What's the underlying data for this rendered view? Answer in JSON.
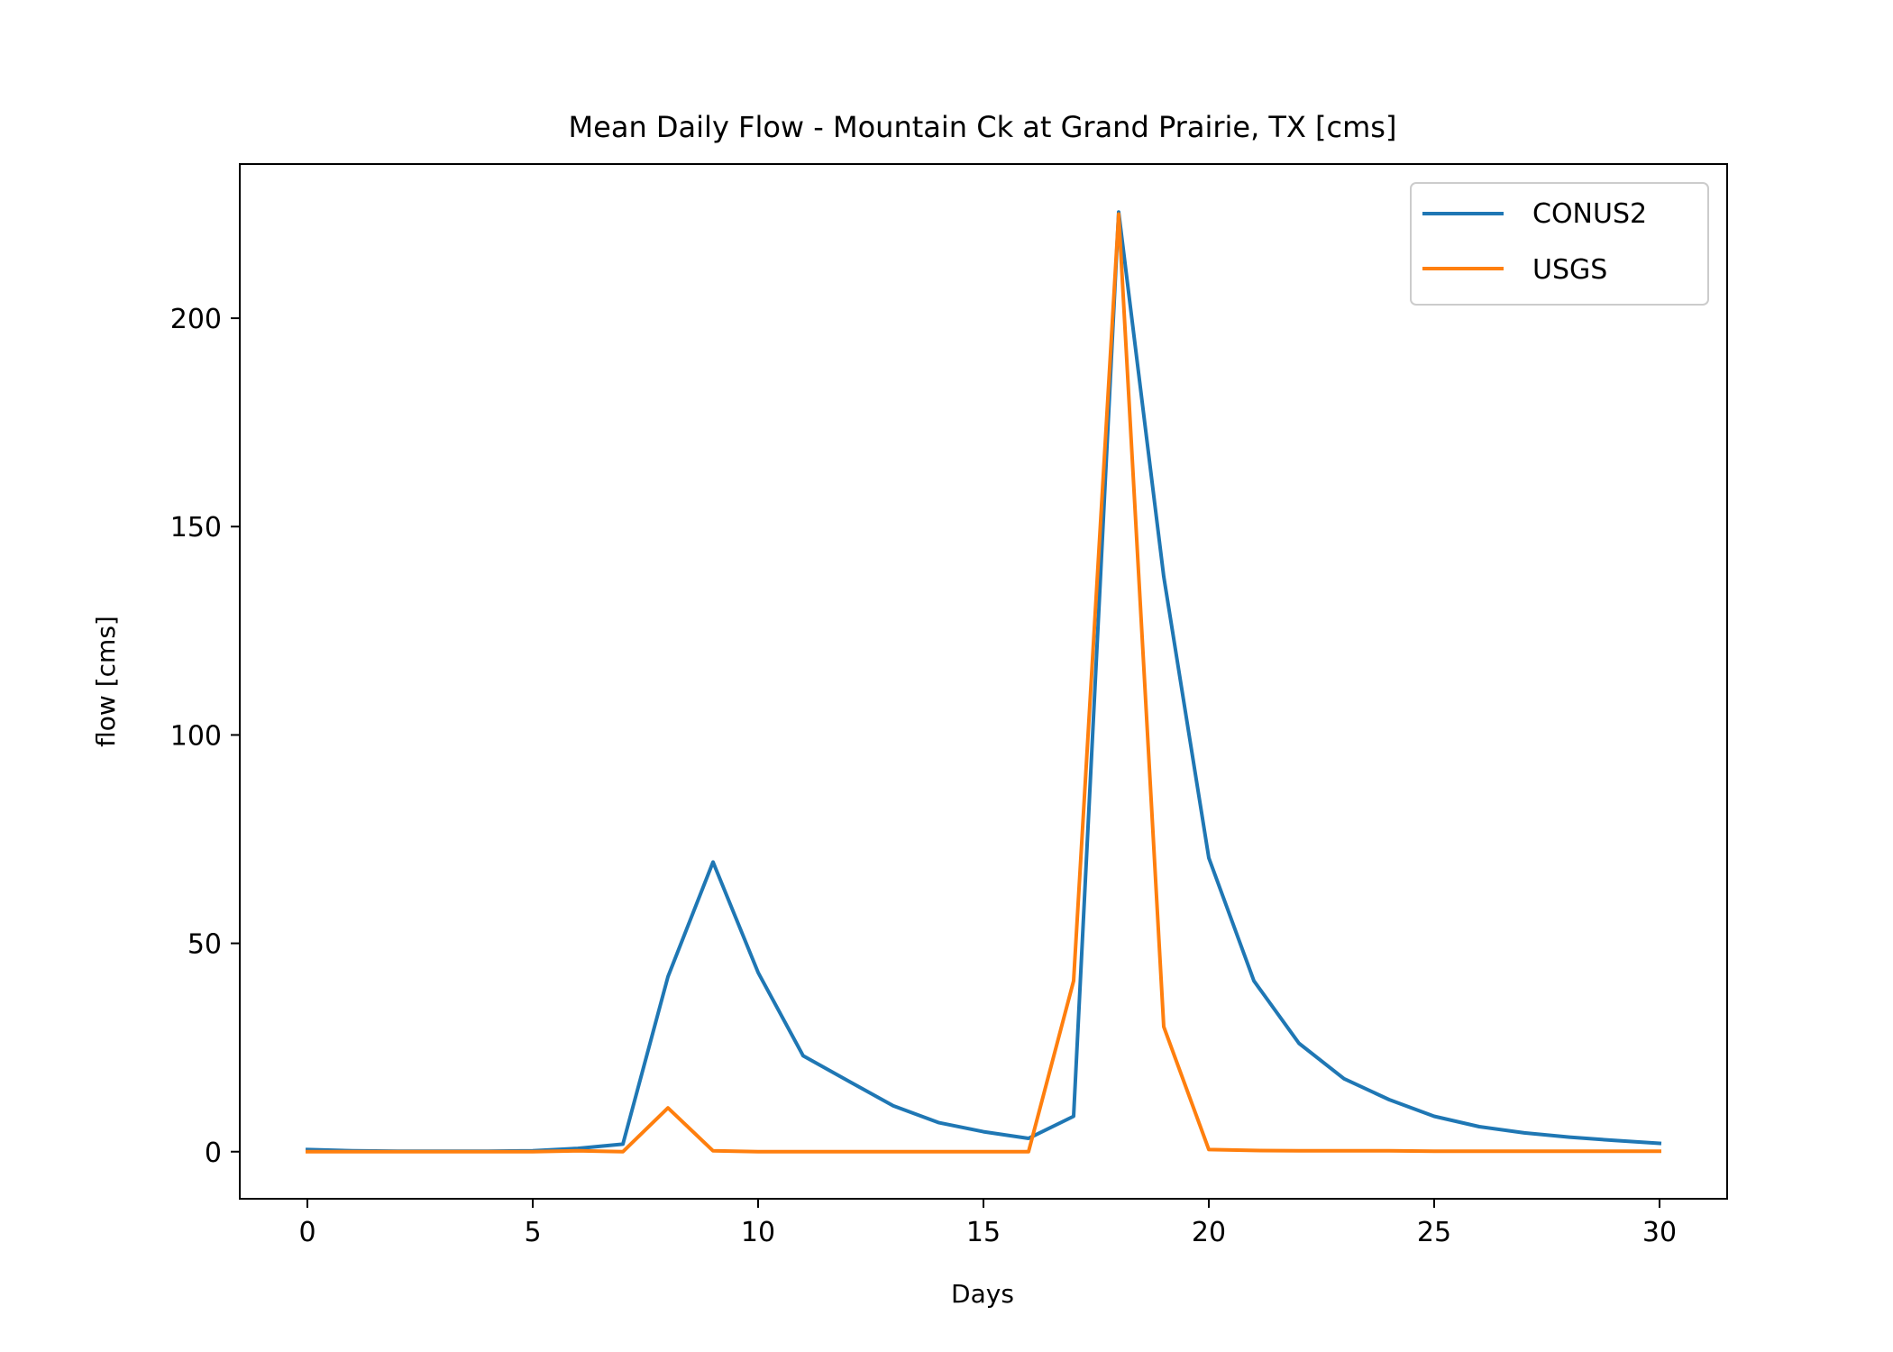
{
  "chart_data": {
    "type": "line",
    "title": "Mean Daily Flow - Mountain Ck at Grand Prairie, TX [cms]",
    "xlabel": "Days",
    "ylabel": "flow [cms]",
    "xlim": [
      -1.5,
      31.5
    ],
    "ylim": [
      -11.3,
      237
    ],
    "xticks": [
      0,
      5,
      10,
      15,
      20,
      25,
      30
    ],
    "yticks": [
      0,
      50,
      100,
      150,
      200
    ],
    "grid": false,
    "legend_position": "top-right",
    "x": [
      0,
      1,
      2,
      3,
      4,
      5,
      6,
      7,
      8,
      9,
      10,
      11,
      12,
      13,
      14,
      15,
      16,
      17,
      18,
      19,
      20,
      21,
      22,
      23,
      24,
      25,
      26,
      27,
      28,
      29,
      30
    ],
    "series": [
      {
        "name": "CONUS2",
        "color": "#1f77b4",
        "values": [
          0.5,
          0.2,
          0.1,
          0.1,
          0.1,
          0.2,
          0.8,
          1.8,
          42,
          69.5,
          43,
          23,
          17,
          11,
          7,
          4.8,
          3.2,
          8.5,
          225.5,
          138,
          70.5,
          41,
          26,
          17.5,
          12.5,
          8.5,
          6,
          4.5,
          3.5,
          2.7,
          2
        ]
      },
      {
        "name": "USGS",
        "color": "#ff7f0e",
        "values": [
          0,
          0,
          0,
          0,
          0,
          0,
          0.2,
          0,
          10.5,
          0.2,
          0,
          0,
          0,
          0,
          0,
          0,
          0,
          41,
          225,
          30,
          0.5,
          0.3,
          0.2,
          0.2,
          0.2,
          0.1,
          0.1,
          0.1,
          0.1,
          0.1,
          0.1
        ]
      }
    ]
  }
}
